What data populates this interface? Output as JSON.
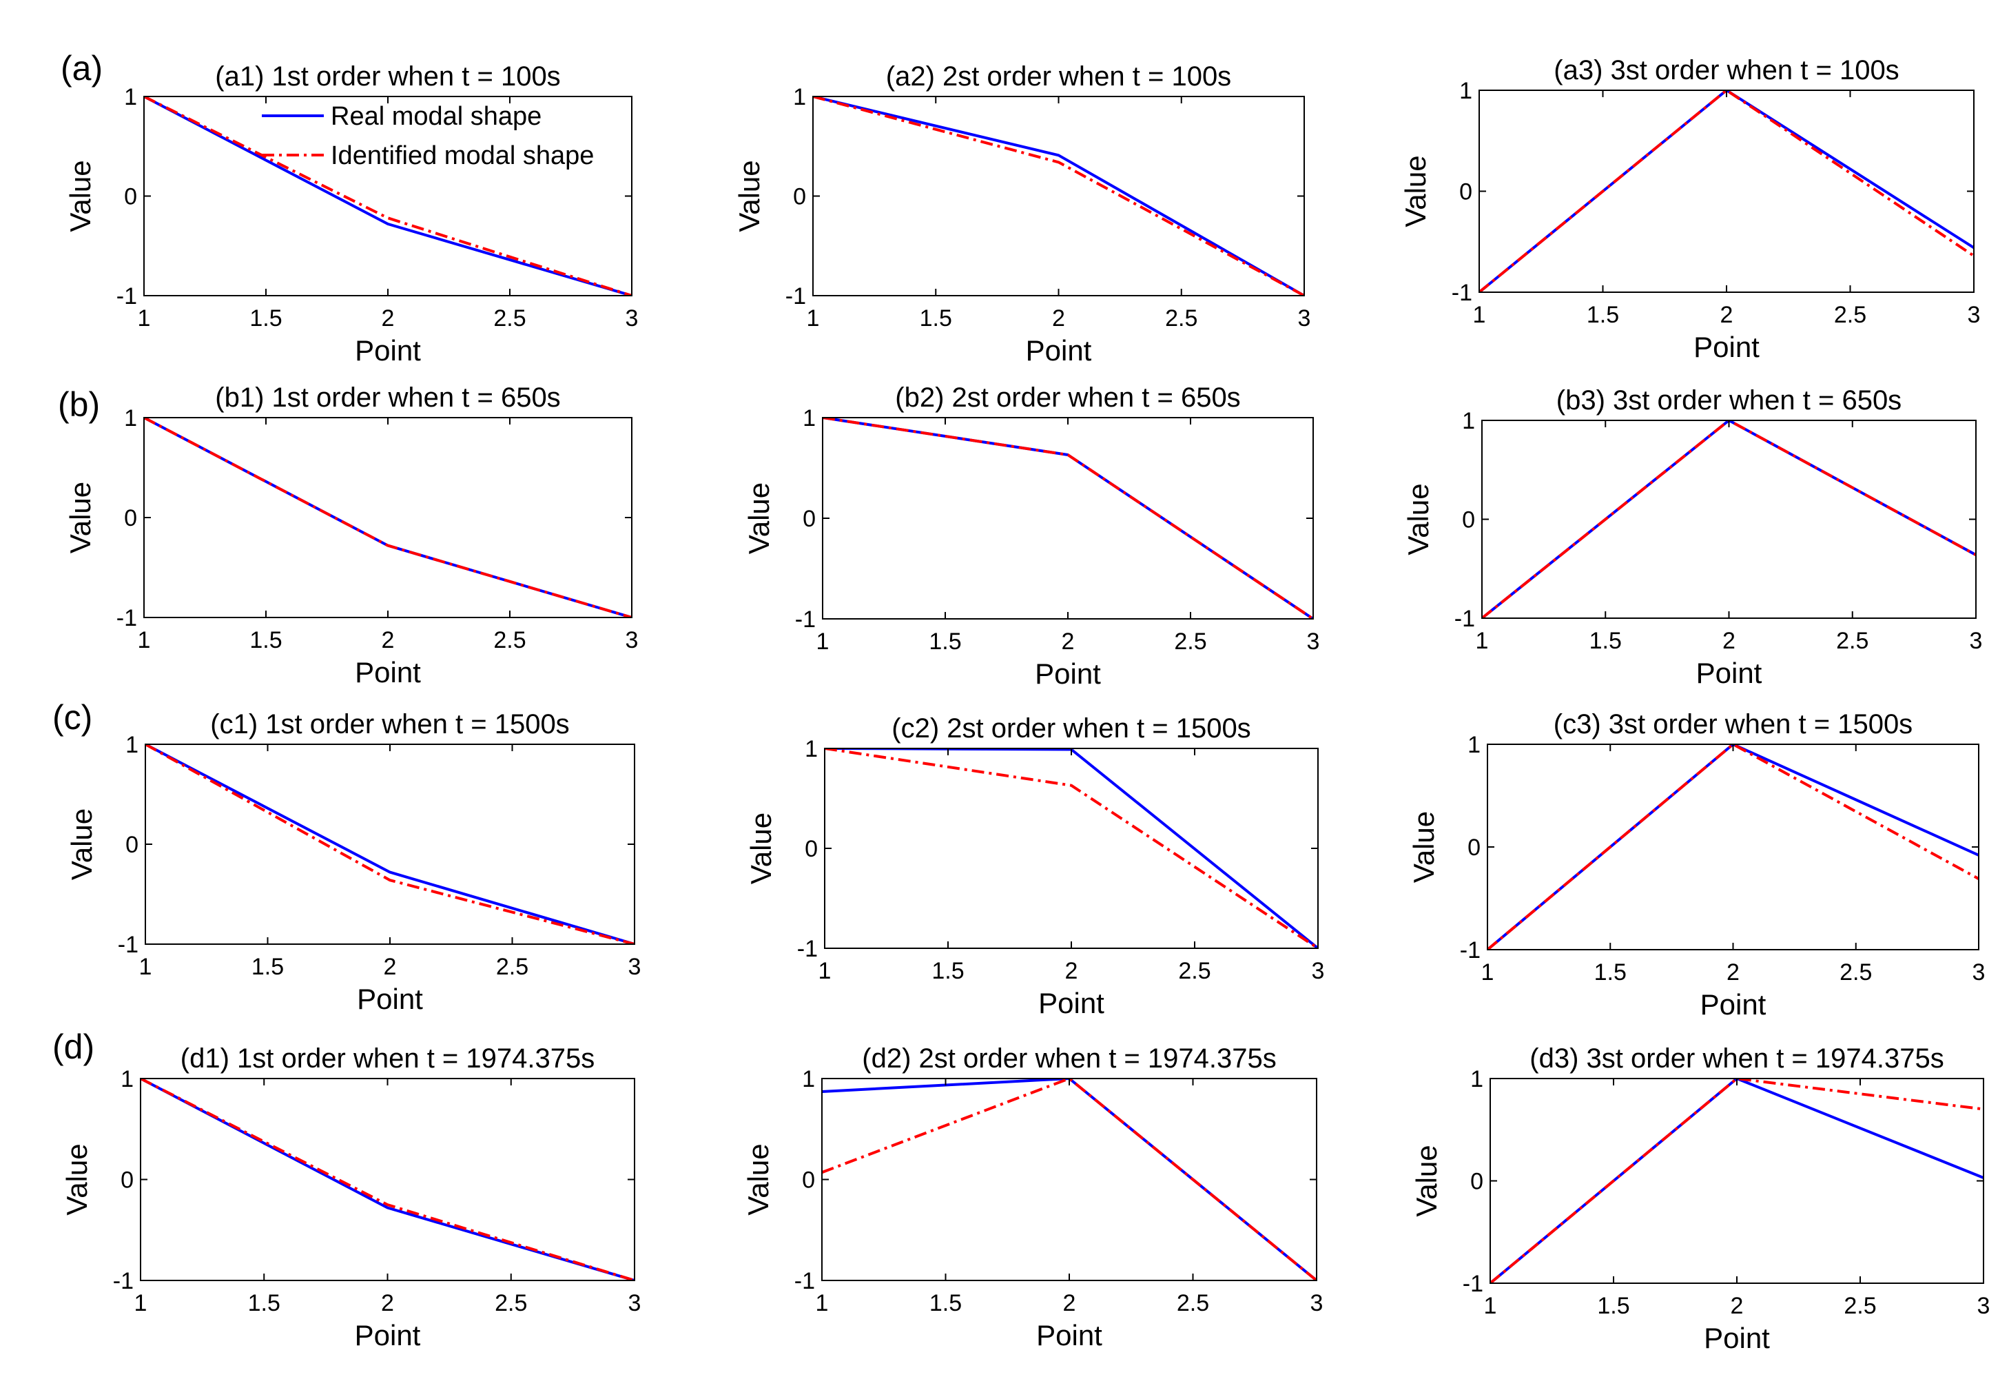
{
  "row_labels": [
    "(a)",
    "(b)",
    "(c)",
    "(d)"
  ],
  "legend": {
    "entries": [
      {
        "label": "Real modal shape",
        "color": "#0000ff",
        "style": "solid"
      },
      {
        "label": "Identified modal shape",
        "color": "#ff0000",
        "style": "dashdot"
      }
    ]
  },
  "colors": {
    "real": "#0000ff",
    "identified": "#ff0000"
  },
  "chart_data": [
    {
      "id": "a1",
      "type": "line",
      "title": "(a1) 1st order when t = 100s",
      "xlabel": "Point",
      "ylabel": "Value",
      "xlim": [
        1,
        3
      ],
      "ylim": [
        -1,
        1
      ],
      "xticks": [
        "1",
        "1.5",
        "2",
        "2.5",
        "3"
      ],
      "yticks": [
        "-1",
        "0",
        "1"
      ],
      "x": [
        1,
        2,
        3
      ],
      "series": [
        {
          "name": "Real modal shape",
          "values": [
            1,
            -0.28,
            -1
          ]
        },
        {
          "name": "Identified modal shape",
          "values": [
            1,
            -0.22,
            -1
          ]
        }
      ]
    },
    {
      "id": "a2",
      "type": "line",
      "title": "(a2) 2st order when t = 100s",
      "xlabel": "Point",
      "ylabel": "Value",
      "xlim": [
        1,
        3
      ],
      "ylim": [
        -1,
        1
      ],
      "xticks": [
        "1",
        "1.5",
        "2",
        "2.5",
        "3"
      ],
      "yticks": [
        "-1",
        "0",
        "1"
      ],
      "x": [
        1,
        2,
        3
      ],
      "series": [
        {
          "name": "Real modal shape",
          "values": [
            1,
            0.41,
            -1
          ]
        },
        {
          "name": "Identified modal shape",
          "values": [
            1,
            0.34,
            -1
          ]
        }
      ]
    },
    {
      "id": "a3",
      "type": "line",
      "title": "(a3) 3st order when t = 100s",
      "xlabel": "Point",
      "ylabel": "Value",
      "xlim": [
        1,
        3
      ],
      "ylim": [
        -1,
        1
      ],
      "xticks": [
        "1",
        "1.5",
        "2",
        "2.5",
        "3"
      ],
      "yticks": [
        "-1",
        "0",
        "1"
      ],
      "x": [
        1,
        2,
        3
      ],
      "series": [
        {
          "name": "Real modal shape",
          "values": [
            -1,
            1,
            -0.56
          ]
        },
        {
          "name": "Identified modal shape",
          "values": [
            -1,
            1,
            -0.64
          ]
        }
      ]
    },
    {
      "id": "b1",
      "type": "line",
      "title": "(b1) 1st order when t = 650s",
      "xlabel": "Point",
      "ylabel": "Value",
      "xlim": [
        1,
        3
      ],
      "ylim": [
        -1,
        1
      ],
      "xticks": [
        "1",
        "1.5",
        "2",
        "2.5",
        "3"
      ],
      "yticks": [
        "-1",
        "0",
        "1"
      ],
      "x": [
        1,
        2,
        3
      ],
      "series": [
        {
          "name": "Real modal shape",
          "values": [
            1,
            -0.28,
            -1
          ]
        },
        {
          "name": "Identified modal shape",
          "values": [
            1,
            -0.28,
            -1
          ]
        }
      ]
    },
    {
      "id": "b2",
      "type": "line",
      "title": "(b2) 2st order when t = 650s",
      "xlabel": "Point",
      "ylabel": "Value",
      "xlim": [
        1,
        3
      ],
      "ylim": [
        -1,
        1
      ],
      "xticks": [
        "1",
        "1.5",
        "2",
        "2.5",
        "3"
      ],
      "yticks": [
        "-1",
        "0",
        "1"
      ],
      "x": [
        1,
        2,
        3
      ],
      "series": [
        {
          "name": "Real modal shape",
          "values": [
            1,
            0.63,
            -1
          ]
        },
        {
          "name": "Identified modal shape",
          "values": [
            1,
            0.63,
            -1
          ]
        }
      ]
    },
    {
      "id": "b3",
      "type": "line",
      "title": "(b3) 3st order when t = 650s",
      "xlabel": "Point",
      "ylabel": "Value",
      "xlim": [
        1,
        3
      ],
      "ylim": [
        -1,
        1
      ],
      "xticks": [
        "1",
        "1.5",
        "2",
        "2.5",
        "3"
      ],
      "yticks": [
        "-1",
        "0",
        "1"
      ],
      "x": [
        1,
        2,
        3
      ],
      "series": [
        {
          "name": "Real modal shape",
          "values": [
            -1,
            1,
            -0.36
          ]
        },
        {
          "name": "Identified modal shape",
          "values": [
            -1,
            1,
            -0.36
          ]
        }
      ]
    },
    {
      "id": "c1",
      "type": "line",
      "title": "(c1) 1st order when t = 1500s",
      "xlabel": "Point",
      "ylabel": "Value",
      "xlim": [
        1,
        3
      ],
      "ylim": [
        -1,
        1
      ],
      "xticks": [
        "1",
        "1.5",
        "2",
        "2.5",
        "3"
      ],
      "yticks": [
        "-1",
        "0",
        "1"
      ],
      "x": [
        1,
        2,
        3
      ],
      "series": [
        {
          "name": "Real modal shape",
          "values": [
            1,
            -0.28,
            -1
          ]
        },
        {
          "name": "Identified modal shape",
          "values": [
            1,
            -0.36,
            -1
          ]
        }
      ]
    },
    {
      "id": "c2",
      "type": "line",
      "title": "(c2) 2st order when t = 1500s",
      "xlabel": "Point",
      "ylabel": "Value",
      "xlim": [
        1,
        3
      ],
      "ylim": [
        -1,
        1
      ],
      "xticks": [
        "1",
        "1.5",
        "2",
        "2.5",
        "3"
      ],
      "yticks": [
        "-1",
        "0",
        "1"
      ],
      "x": [
        1,
        2,
        3
      ],
      "series": [
        {
          "name": "Real modal shape",
          "values": [
            1,
            0.99,
            -1
          ]
        },
        {
          "name": "Identified modal shape",
          "values": [
            1,
            0.63,
            -1
          ]
        }
      ]
    },
    {
      "id": "c3",
      "type": "line",
      "title": "(c3) 3st order when t = 1500s",
      "xlabel": "Point",
      "ylabel": "Value",
      "xlim": [
        1,
        3
      ],
      "ylim": [
        -1,
        1
      ],
      "xticks": [
        "1",
        "1.5",
        "2",
        "2.5",
        "3"
      ],
      "yticks": [
        "-1",
        "0",
        "1"
      ],
      "x": [
        1,
        2,
        3
      ],
      "series": [
        {
          "name": "Real modal shape",
          "values": [
            -1,
            1,
            -0.08
          ]
        },
        {
          "name": "Identified modal shape",
          "values": [
            -1,
            1,
            -0.31
          ]
        }
      ]
    },
    {
      "id": "d1",
      "type": "line",
      "title": "(d1) 1st order when t = 1974.375s",
      "xlabel": "Point",
      "ylabel": "Value",
      "xlim": [
        1,
        3
      ],
      "ylim": [
        -1,
        1
      ],
      "xticks": [
        "1",
        "1.5",
        "2",
        "2.5",
        "3"
      ],
      "yticks": [
        "-1",
        "0",
        "1"
      ],
      "x": [
        1,
        2,
        3
      ],
      "series": [
        {
          "name": "Real modal shape",
          "values": [
            1,
            -0.28,
            -1
          ]
        },
        {
          "name": "Identified modal shape",
          "values": [
            1,
            -0.25,
            -1
          ]
        }
      ]
    },
    {
      "id": "d2",
      "type": "line",
      "title": "(d2) 2st order when t = 1974.375s",
      "xlabel": "Point",
      "ylabel": "Value",
      "xlim": [
        1,
        3
      ],
      "ylim": [
        -1,
        1
      ],
      "xticks": [
        "1",
        "1.5",
        "2",
        "2.5",
        "3"
      ],
      "yticks": [
        "-1",
        "0",
        "1"
      ],
      "x": [
        1,
        2,
        3
      ],
      "series": [
        {
          "name": "Real modal shape",
          "values": [
            0.87,
            1,
            -1
          ]
        },
        {
          "name": "Identified modal shape",
          "values": [
            0.07,
            1,
            -1
          ]
        }
      ]
    },
    {
      "id": "d3",
      "type": "line",
      "title": "(d3) 3st order when t = 1974.375s",
      "xlabel": "Point",
      "ylabel": "Value",
      "xlim": [
        1,
        3
      ],
      "ylim": [
        -1,
        1
      ],
      "xticks": [
        "1",
        "1.5",
        "2",
        "2.5",
        "3"
      ],
      "yticks": [
        "-1",
        "0",
        "1"
      ],
      "x": [
        1,
        2,
        3
      ],
      "series": [
        {
          "name": "Real modal shape",
          "values": [
            -1,
            1,
            0.03
          ]
        },
        {
          "name": "Identified modal shape",
          "values": [
            -1,
            1,
            0.7
          ]
        }
      ]
    }
  ]
}
